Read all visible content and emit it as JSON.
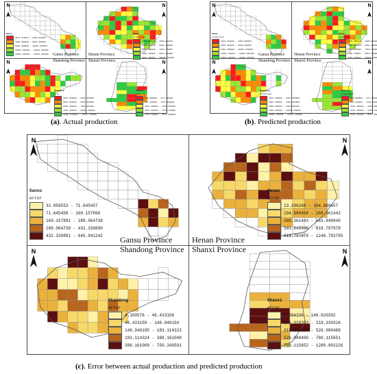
{
  "captions": {
    "a": {
      "label": "(a)",
      "text": ". Actual production"
    },
    "b": {
      "label": "(b)",
      "text": ". Predicted production"
    },
    "c": {
      "label": "(c)",
      "text": ". Error between actual production and predicted production"
    }
  },
  "north_label": "N",
  "colors": {
    "production": [
      "#ff1a1a",
      "#ff8c00",
      "#ffff40",
      "#99e633",
      "#2ecc40"
    ],
    "error": [
      "#fff1a8",
      "#f7d96a",
      "#eab23c",
      "#b8651e",
      "#5c0f0f"
    ]
  },
  "figure_c": {
    "panels": [
      {
        "id": "gansu",
        "province_label": "Gansu Province",
        "legend": {
          "title": "Gansu",
          "subtitle": "error",
          "ranges": [
            "32.856553 - 71.645457",
            "71.645458 - 160.157890",
            "160.157891 - 288.064738",
            "288.064739 - 432.339890",
            "432.339891 - 645.941242"
          ]
        }
      },
      {
        "id": "henan",
        "province_label": "Henan Province",
        "legend": {
          "title": "Henan",
          "subtitle": "error",
          "ranges": [
            "13.296269 - 194.980457",
            "194.980458 - 288.361442",
            "288.361443 - 583.849945",
            "583.849946 - 818.797978",
            "818.797979 - 1246.783795"
          ]
        }
      },
      {
        "id": "shandong",
        "province_label": "Shandong Province",
        "legend": {
          "title": "Shandong",
          "subtitle": "error",
          "ranges": [
            "4.150576 - 46.433158",
            "46.433159 - 148.940194",
            "148.940195 - 183.114323",
            "183.114324 - 388.161008",
            "388.161009 - 750.349591"
          ]
        }
      },
      {
        "id": "shanxi",
        "province_label": "Shanxi Province",
        "legend": {
          "title": "Shanxi",
          "subtitle": "error",
          "ranges": [
            "8.994336 - 146.020392",
            "146.020393 - 319.330326",
            "319.330327 - 526.090489",
            "526.090490 - 780.115651",
            "780.115652 - 1280.902226"
          ]
        }
      }
    ]
  },
  "figure_a": {
    "panels": [
      {
        "id": "gansu",
        "province_label": "Gansu Province",
        "legend": {
          "title": "Gansu",
          "subtitle": "",
          "ranges": [
            "2673.213085 - 4305.902935",
            "4305.902936 - 5862.399095",
            "5862.399096 - 10097.519866",
            "10097.519867 - 15462.920396",
            "15462.920397 - 22356.215020"
          ]
        }
      },
      {
        "id": "henan",
        "province_label": "Henan Province",
        "legend": {
          "title": "Henan",
          "subtitle": "production",
          "ranges": [
            "1379.385974 - 4305.902935",
            "4305.902936 - 5862.399095",
            "5862.399096 - 7350.793956",
            "7350.793957 - 9015.430000",
            "9015.430001 - 15210.999000"
          ]
        }
      },
      {
        "id": "shandong",
        "province_label": "Shandong Province",
        "legend": {
          "title": "Shandong",
          "subtitle": "real",
          "ranges": [
            "2613.293000 - 3807.295000",
            "3807.295001 - 5392.354000",
            "5392.354001 - 7364.264000",
            "7364.264001 - 10097.529000",
            "10097.529001 - 17541.776000"
          ]
        }
      },
      {
        "id": "shanxi",
        "province_label": "Shanxi Province",
        "legend": {
          "title": "Shanxi",
          "subtitle": "real",
          "ranges": [
            "236.998000 - 874.138000",
            "874.138001 - 1513.400000",
            "1513.400001 - 2376.301000",
            "2376.301001 - 3724.710000",
            "3724.710001 - 5573.990000"
          ]
        }
      }
    ]
  },
  "figure_b": {
    "panels": [
      {
        "id": "gansu",
        "province_label": "Gansu Province",
        "legend": {
          "title": "Gansu",
          "subtitle": "production",
          "ranges": [
            "2673.213085 - 4305.902935",
            "4305.902936 - 5862.399095",
            "5862.399096 - 10097.519866",
            "10097.519867 - 15462.920396",
            "15462.920397 - 22356.215020"
          ]
        }
      },
      {
        "id": "henan",
        "province_label": "Henan Province",
        "legend": {
          "title": "Henan",
          "subtitle": "production",
          "ranges": [
            "1379.385974 - 4305.902935",
            "4305.902936 - 5862.399095",
            "5862.399096 - 7350.793956",
            "7350.793957 - 9015.430000",
            "9015.430001 - 15210.999000"
          ]
        }
      },
      {
        "id": "shandong",
        "province_label": "Shandong Province",
        "legend": {
          "title": "Shandong",
          "subtitle": "production",
          "ranges": [
            "2613.293000 - 3807.295000",
            "3807.295001 - 5392.354000",
            "5392.354001 - 7364.264000",
            "7364.264001 - 10097.529000",
            "10097.529001 - 17541.776000"
          ]
        }
      },
      {
        "id": "shanxi",
        "province_label": "Shanxi Province",
        "legend": {
          "title": "Shanxi",
          "subtitle": "production",
          "ranges": [
            "236.998000 - 874.138000",
            "874.138001 - 1513.400000",
            "1513.400001 - 2376.301000",
            "2376.301001 - 3724.710000",
            "3724.710001 - 5573.990000"
          ]
        }
      }
    ]
  }
}
